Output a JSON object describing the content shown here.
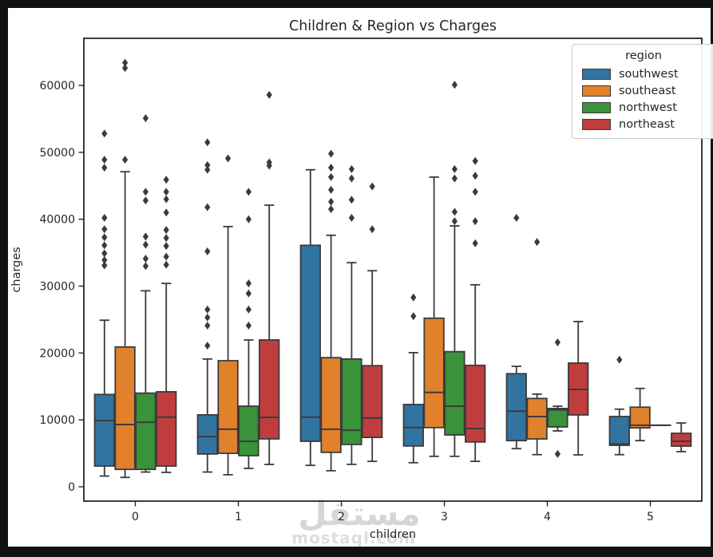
{
  "window": {
    "background": "black-frame"
  },
  "chart_data": {
    "type": "grouped_boxplot",
    "title": "Children & Region vs Charges",
    "xlabel": "children",
    "ylabel": "charges",
    "categories": [
      "0",
      "1",
      "2",
      "3",
      "4",
      "5"
    ],
    "yticks": [
      0,
      10000,
      20000,
      30000,
      40000,
      50000,
      60000
    ],
    "ylim": [
      -2150,
      67050
    ],
    "grid": false,
    "legend_title": "region",
    "legend_position": "upper right",
    "marker": "diamond",
    "series": [
      {
        "name": "southwest",
        "color": "#3274A1",
        "boxes": [
          {
            "whislo": 1600,
            "q1": 3100,
            "med": 9900,
            "q3": 13800,
            "whishi": 24900,
            "outliers": [
              52800,
              48900,
              47700,
              40200,
              38500,
              37300,
              36100,
              34900,
              33900,
              33100
            ]
          },
          {
            "whislo": 2200,
            "q1": 4900,
            "med": 7500,
            "q3": 10750,
            "whishi": 19100,
            "outliers": [
              51500,
              48100,
              47400,
              41800,
              35200,
              26500,
              25300,
              24100,
              21100
            ]
          },
          {
            "whislo": 3200,
            "q1": 6800,
            "med": 10400,
            "q3": 36100,
            "whishi": 47400,
            "outliers": []
          },
          {
            "whislo": 3600,
            "q1": 6100,
            "med": 8850,
            "q3": 12300,
            "whishi": 20050,
            "outliers": [
              28300,
              25500
            ]
          },
          {
            "whislo": 5700,
            "q1": 6900,
            "med": 11300,
            "q3": 16900,
            "whishi": 18000,
            "outliers": [
              40200
            ]
          },
          {
            "whislo": 4800,
            "q1": 6200,
            "med": 6400,
            "q3": 10500,
            "whishi": 11600,
            "outliers": [
              19000
            ]
          }
        ]
      },
      {
        "name": "southeast",
        "color": "#E1812C",
        "boxes": [
          {
            "whislo": 1400,
            "q1": 2600,
            "med": 9300,
            "q3": 20900,
            "whishi": 47100,
            "outliers": [
              63400,
              62600,
              48900
            ]
          },
          {
            "whislo": 1800,
            "q1": 5000,
            "med": 8600,
            "q3": 18850,
            "whishi": 38900,
            "outliers": [
              49100
            ]
          },
          {
            "whislo": 2400,
            "q1": 5150,
            "med": 8600,
            "q3": 19300,
            "whishi": 37600,
            "outliers": [
              49800,
              47700,
              46300,
              44400,
              42600,
              41500
            ]
          },
          {
            "whislo": 4550,
            "q1": 8850,
            "med": 14100,
            "q3": 25200,
            "whishi": 46300,
            "outliers": []
          },
          {
            "whislo": 4800,
            "q1": 7150,
            "med": 10500,
            "q3": 13200,
            "whishi": 13850,
            "outliers": [
              36600
            ]
          },
          {
            "whislo": 6900,
            "q1": 8800,
            "med": 9200,
            "q3": 11900,
            "whishi": 14700,
            "outliers": []
          }
        ]
      },
      {
        "name": "northwest",
        "color": "#3A923A",
        "boxes": [
          {
            "whislo": 2200,
            "q1": 2600,
            "med": 9650,
            "q3": 14000,
            "whishi": 29300,
            "outliers": [
              55100,
              44100,
              42800,
              37400,
              36200,
              34100,
              33000
            ]
          },
          {
            "whislo": 2750,
            "q1": 4650,
            "med": 6800,
            "q3": 12050,
            "whishi": 21950,
            "outliers": [
              44100,
              40000,
              30400,
              28900,
              26500,
              24100
            ]
          },
          {
            "whislo": 3350,
            "q1": 6330,
            "med": 8450,
            "q3": 19100,
            "whishi": 33500,
            "outliers": [
              47500,
              46100,
              42900,
              40200
            ]
          },
          {
            "whislo": 4550,
            "q1": 7750,
            "med": 12050,
            "q3": 20200,
            "whishi": 39000,
            "outliers": [
              60100,
              47500,
              46100,
              41100,
              39700
            ]
          },
          {
            "whislo": 8350,
            "q1": 8950,
            "med": 11500,
            "q3": 11700,
            "whishi": 12050,
            "outliers": [
              21600,
              4900
            ]
          },
          {
            "whislo": 9200,
            "q1": 9200,
            "med": 9200,
            "q3": 9200,
            "whishi": 9200,
            "outliers": []
          }
        ]
      },
      {
        "name": "northeast",
        "color": "#C03D3E",
        "boxes": [
          {
            "whislo": 2150,
            "q1": 3100,
            "med": 10400,
            "q3": 14200,
            "whishi": 30400,
            "outliers": [
              45900,
              44100,
              43000,
              41000,
              38400,
              37200,
              36000,
              34400,
              33200
            ]
          },
          {
            "whislo": 3340,
            "q1": 7160,
            "med": 10380,
            "q3": 21950,
            "whishi": 42100,
            "outliers": [
              58600,
              48500,
              48000
            ]
          },
          {
            "whislo": 3800,
            "q1": 7380,
            "med": 10270,
            "q3": 18100,
            "whishi": 32300,
            "outliers": [
              44900,
              38500
            ]
          },
          {
            "whislo": 3800,
            "q1": 6700,
            "med": 8700,
            "q3": 18150,
            "whishi": 30200,
            "outliers": [
              48700,
              46500,
              44100,
              39700,
              36400
            ]
          },
          {
            "whislo": 4770,
            "q1": 10740,
            "med": 14550,
            "q3": 18490,
            "whishi": 24700,
            "outliers": []
          },
          {
            "whislo": 5250,
            "q1": 6080,
            "med": 6800,
            "q3": 7990,
            "whishi": 9540,
            "outliers": []
          }
        ]
      }
    ],
    "watermark": {
      "arabic": "مستقل",
      "latin": "mostaql.com"
    }
  }
}
